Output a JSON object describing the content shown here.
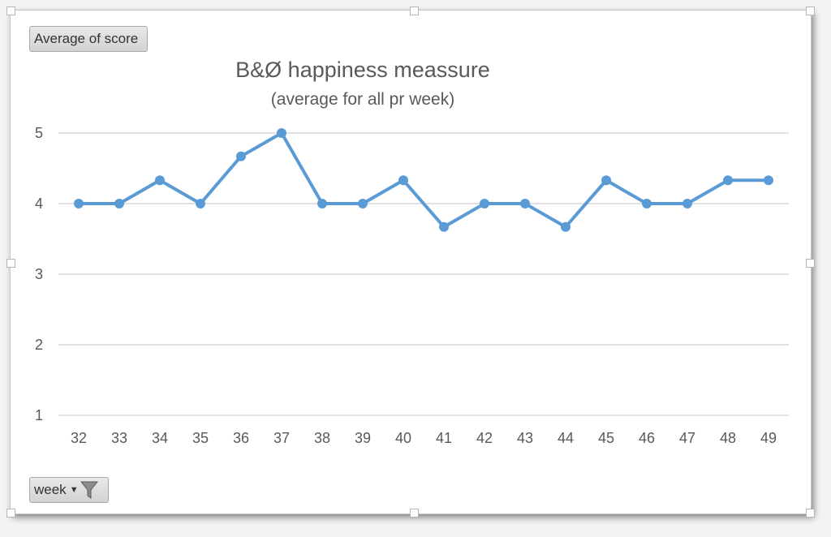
{
  "pivot": {
    "value_field_label": "Average of score",
    "axis_field_label": "week",
    "filter_icon": "funnel-filter-icon",
    "dropdown_icon": "caret-down-icon"
  },
  "chart_data": {
    "type": "line",
    "title": "B&Ø happiness meassure",
    "subtitle": "(average for all pr week)",
    "xlabel": "",
    "ylabel": "",
    "categories": [
      "32",
      "33",
      "34",
      "35",
      "36",
      "37",
      "38",
      "39",
      "40",
      "41",
      "42",
      "43",
      "44",
      "45",
      "46",
      "47",
      "48",
      "49"
    ],
    "values": [
      4,
      4,
      4.33,
      4,
      4.67,
      5,
      4,
      4,
      4.33,
      3.67,
      4,
      4,
      3.67,
      4.33,
      4,
      4,
      4.33,
      4.33
    ],
    "ylim": [
      1,
      5
    ],
    "yticks": [
      "1",
      "2",
      "3",
      "4",
      "5"
    ],
    "grid": true,
    "legend": "none",
    "series_color": "#5b9bd5",
    "grid_color": "#d9d9d9"
  }
}
